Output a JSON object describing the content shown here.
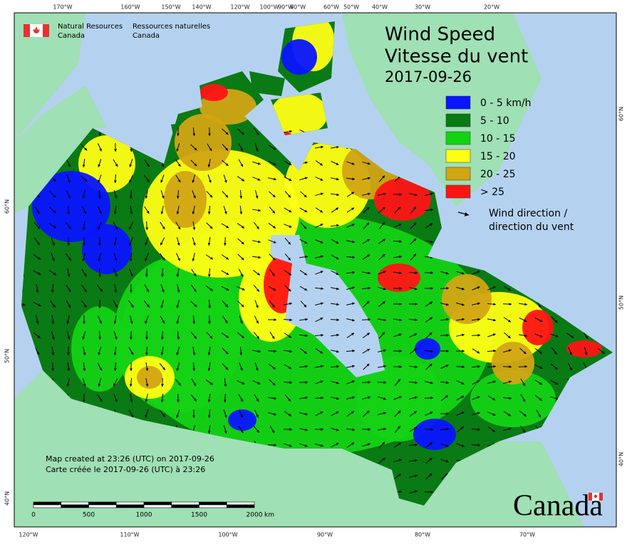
{
  "agency": {
    "en": [
      "Natural Resources",
      "Canada"
    ],
    "fr": [
      "Ressources naturelles",
      "Canada"
    ]
  },
  "title": [
    "Wind Speed",
    "Vitesse du vent"
  ],
  "date": "2017-09-26",
  "legend": {
    "items": [
      {
        "label": "0 - 5 km/h",
        "color": "#0a14ff"
      },
      {
        "label": "5 - 10",
        "color": "#0a7a14"
      },
      {
        "label": "10 - 15",
        "color": "#14d214"
      },
      {
        "label": "15 - 20",
        "color": "#ffff14"
      },
      {
        "label": "20 - 25",
        "color": "#d2a514"
      },
      {
        "label": "> 25",
        "color": "#ff1414"
      }
    ],
    "direction": [
      "Wind direction /",
      "direction du vent"
    ]
  },
  "footer": [
    "Map created at 23:26 (UTC) on 2017-09-26",
    "Carte créée le 2017-09-26 (UTC) à 23:26"
  ],
  "scale_bar": {
    "labels": [
      "0",
      "500",
      "1000",
      "1500",
      "2000"
    ],
    "unit": "km"
  },
  "graticule": {
    "top": [
      "170°W",
      "160°W",
      "150°W",
      "140°W",
      "120°W",
      "100°W",
      "90°W",
      "80°W",
      "60°W",
      "50°W",
      "40°W",
      "30°W",
      "20°W"
    ],
    "bottom": [
      "120°W",
      "110°W",
      "100°W",
      "90°W",
      "80°W",
      "70°W"
    ],
    "left": [
      "60°N",
      "50°N",
      "40°N"
    ],
    "right": [
      "60°N",
      "50°N",
      "40°N"
    ]
  },
  "wordmark": "Canada"
}
